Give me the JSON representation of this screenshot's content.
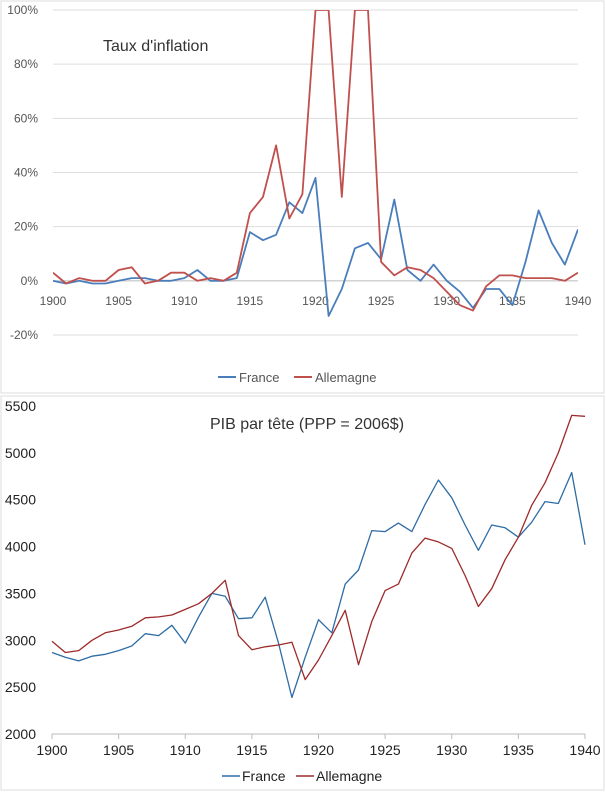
{
  "colors": {
    "france": "#4a7ebb",
    "allemagne": "#c0504d",
    "france2": "#2e6ca4",
    "allemagne2": "#9e2a2a"
  },
  "chart_data": [
    {
      "type": "line",
      "title": "Taux d'inflation",
      "xlabel": "",
      "ylabel": "",
      "xlim": [
        1900,
        1940
      ],
      "ylim": [
        -20,
        100
      ],
      "x_ticks": [
        1900,
        1905,
        1910,
        1915,
        1920,
        1925,
        1930,
        1935,
        1940
      ],
      "x_tick_labels": [
        "1900",
        "1905",
        "1910",
        "1915",
        "1920",
        "1925",
        "1930",
        "1935",
        "1940"
      ],
      "y_ticks": [
        -20,
        0,
        20,
        40,
        60,
        80,
        100
      ],
      "y_tick_labels": [
        "-20%",
        "0%",
        "20%",
        "40%",
        "60%",
        "80%",
        "100%"
      ],
      "grid": true,
      "legend": "bottom",
      "legend_labels": [
        "France",
        "Allemagne"
      ],
      "x": [
        1900,
        1901,
        1902,
        1903,
        1904,
        1905,
        1906,
        1907,
        1908,
        1909,
        1910,
        1911,
        1912,
        1913,
        1914,
        1915,
        1916,
        1917,
        1918,
        1919,
        1920,
        1921,
        1922,
        1923,
        1924,
        1925,
        1926,
        1927,
        1928,
        1929,
        1930,
        1931,
        1932,
        1933,
        1934,
        1935,
        1936,
        1937,
        1938,
        1939,
        1940
      ],
      "series": [
        {
          "name": "France",
          "values": [
            0,
            -1,
            0,
            -1,
            -1,
            0,
            1,
            1,
            0,
            0,
            1,
            4,
            0,
            0,
            1,
            18,
            15,
            17,
            29,
            25,
            38,
            -13,
            -3,
            12,
            14,
            8,
            30,
            4,
            0,
            6,
            0,
            -4,
            -10,
            -3,
            -3,
            -9,
            7,
            26,
            14,
            6,
            19
          ]
        },
        {
          "name": "Allemagne",
          "values": [
            3,
            -1,
            1,
            0,
            0,
            4,
            5,
            -1,
            0,
            3,
            3,
            0,
            1,
            0,
            3,
            25,
            31,
            50,
            23,
            32,
            100,
            100,
            31,
            100,
            100,
            7,
            2,
            5,
            4,
            1,
            -4,
            -9,
            -11,
            -2,
            2,
            2,
            1,
            1,
            1,
            0,
            3
          ]
        }
      ]
    },
    {
      "type": "line",
      "title": "PIB par tête (PPP = 2006$)",
      "xlabel": "",
      "ylabel": "",
      "xlim": [
        1900,
        1940
      ],
      "ylim": [
        2000,
        5500
      ],
      "x_ticks": [
        1900,
        1905,
        1910,
        1915,
        1920,
        1925,
        1930,
        1935,
        1940
      ],
      "x_tick_labels": [
        "1900",
        "1905",
        "1910",
        "1915",
        "1920",
        "1925",
        "1930",
        "1935",
        "1940"
      ],
      "y_ticks": [
        2000,
        2500,
        3000,
        3500,
        4000,
        4500,
        5000,
        5500
      ],
      "y_tick_labels": [
        "2000",
        "2500",
        "3000",
        "3500",
        "4000",
        "4500",
        "5000",
        "5500"
      ],
      "grid": false,
      "legend": "bottom",
      "legend_labels": [
        "France",
        "Allemagne"
      ],
      "x": [
        1900,
        1901,
        1902,
        1903,
        1904,
        1905,
        1906,
        1907,
        1908,
        1909,
        1910,
        1911,
        1912,
        1913,
        1914,
        1915,
        1916,
        1917,
        1918,
        1919,
        1920,
        1921,
        1922,
        1923,
        1924,
        1925,
        1926,
        1927,
        1928,
        1929,
        1930,
        1931,
        1932,
        1933,
        1934,
        1935,
        1936,
        1937,
        1938,
        1939,
        1940
      ],
      "series": [
        {
          "name": "France",
          "values": [
            2870,
            2820,
            2780,
            2830,
            2850,
            2890,
            2940,
            3070,
            3050,
            3160,
            2970,
            3250,
            3500,
            3470,
            3230,
            3240,
            3460,
            2970,
            2390,
            2820,
            3220,
            3080,
            3600,
            3750,
            4170,
            4160,
            4250,
            4160,
            4450,
            4710,
            4520,
            4230,
            3960,
            4230,
            4200,
            4100,
            4260,
            4480,
            4460,
            4790,
            4020
          ]
        },
        {
          "name": "Allemagne",
          "values": [
            2990,
            2870,
            2890,
            3000,
            3080,
            3110,
            3150,
            3240,
            3250,
            3270,
            3330,
            3390,
            3500,
            3640,
            3050,
            2900,
            2930,
            2950,
            2980,
            2580,
            2790,
            3050,
            3320,
            2740,
            3200,
            3530,
            3600,
            3930,
            4090,
            4050,
            3980,
            3690,
            3360,
            3550,
            3860,
            4100,
            4440,
            4680,
            5000,
            5400,
            5390
          ]
        }
      ]
    }
  ]
}
